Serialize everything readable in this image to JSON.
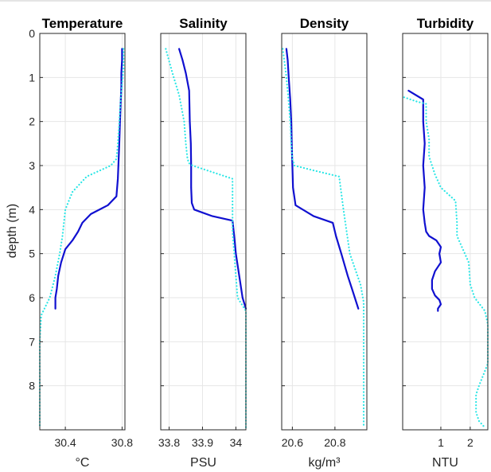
{
  "chart_data": {
    "type": "line",
    "shared_y": {
      "label": "depth (m)",
      "range": [
        0,
        9
      ],
      "reversed": true,
      "ticks": [
        "0",
        "1",
        "2",
        "3",
        "4",
        "5",
        "6",
        "7",
        "8"
      ]
    },
    "grid": true,
    "panels": [
      {
        "title": "Temperature",
        "xlabel": "°C",
        "xlim": [
          30.22,
          30.82
        ],
        "xticks": [
          {
            "value": 30.4,
            "label": "30.4"
          },
          {
            "value": 30.8,
            "label": "30.8"
          }
        ],
        "series": [
          {
            "style": "solid",
            "color": "#1010d0",
            "x": [
              30.8,
              30.8,
              30.795,
              30.795,
              30.79,
              30.785,
              30.78,
              30.775,
              30.77,
              30.76,
              30.7,
              30.58,
              30.52,
              30.49,
              30.45,
              30.4,
              30.37,
              30.35,
              30.34,
              30.33,
              30.33
            ],
            "y": [
              0.35,
              0.6,
              0.9,
              1.2,
              1.6,
              2.0,
              2.5,
              2.9,
              3.3,
              3.7,
              3.9,
              4.1,
              4.3,
              4.5,
              4.7,
              4.9,
              5.2,
              5.5,
              5.8,
              6.0,
              6.25
            ]
          },
          {
            "style": "dotted",
            "color": "#2ce6e6",
            "x": [
              30.81,
              30.81,
              30.79,
              30.78,
              30.77,
              30.76,
              30.72,
              30.55,
              30.45,
              30.4,
              30.38,
              30.36,
              30.33,
              30.29,
              30.23,
              30.22,
              30.22,
              30.22
            ],
            "y": [
              0.35,
              0.8,
              1.5,
              2.0,
              2.5,
              2.85,
              3.0,
              3.25,
              3.6,
              4.0,
              4.6,
              5.0,
              5.5,
              6.0,
              6.4,
              7.0,
              8.0,
              8.95
            ]
          }
        ]
      },
      {
        "title": "Salinity",
        "xlabel": "PSU",
        "xlim": [
          33.775,
          34.03
        ],
        "xticks": [
          {
            "value": 33.8,
            "label": "33.8"
          },
          {
            "value": 33.9,
            "label": "33.9"
          },
          {
            "value": 34.0,
            "label": "34"
          }
        ],
        "series": [
          {
            "style": "solid",
            "color": "#1010d0",
            "x": [
              33.83,
              33.84,
              33.85,
              33.86,
              33.862,
              33.865,
              33.866,
              33.866,
              33.868,
              33.875,
              33.93,
              33.99,
              33.995,
              34.0,
              34.01,
              34.02,
              34.03
            ],
            "y": [
              0.35,
              0.6,
              0.9,
              1.3,
              2.0,
              2.5,
              3.0,
              3.5,
              3.85,
              4.0,
              4.15,
              4.25,
              4.6,
              5.0,
              5.5,
              6.0,
              6.25
            ]
          },
          {
            "style": "dotted",
            "color": "#2ce6e6",
            "x": [
              33.79,
              33.81,
              33.83,
              33.845,
              33.85,
              33.855,
              33.86,
              33.87,
              33.91,
              33.99,
              33.99,
              33.99,
              34.0,
              34.005,
              34.03,
              34.03,
              34.03
            ],
            "y": [
              0.35,
              0.9,
              1.4,
              2.0,
              2.5,
              2.85,
              2.95,
              3.0,
              3.1,
              3.3,
              4.0,
              4.5,
              5.5,
              6.0,
              6.3,
              7.0,
              8.95
            ]
          }
        ]
      },
      {
        "title": "Density",
        "xlabel": "kg/m³",
        "xlim": [
          20.55,
          20.95
        ],
        "xticks": [
          {
            "value": 20.6,
            "label": "20.6"
          },
          {
            "value": 20.8,
            "label": "20.8"
          }
        ],
        "series": [
          {
            "style": "solid",
            "color": "#1010d0",
            "x": [
              20.572,
              20.578,
              20.583,
              20.59,
              20.595,
              20.597,
              20.6,
              20.603,
              20.615,
              20.7,
              20.79,
              20.805,
              20.83,
              20.86,
              20.88,
              20.91
            ],
            "y": [
              0.35,
              0.6,
              1.0,
              1.5,
              2.0,
              2.5,
              3.0,
              3.5,
              3.9,
              4.15,
              4.3,
              4.6,
              5.0,
              5.5,
              5.8,
              6.25
            ]
          },
          {
            "style": "dotted",
            "color": "#2ce6e6",
            "x": [
              20.555,
              20.57,
              20.58,
              20.59,
              20.595,
              20.6,
              20.61,
              20.69,
              20.82,
              20.84,
              20.87,
              20.92,
              20.935,
              20.935,
              20.935
            ],
            "y": [
              0.35,
              0.9,
              1.4,
              2.0,
              2.5,
              2.85,
              3.0,
              3.1,
              3.25,
              4.0,
              5.0,
              5.7,
              6.1,
              7.0,
              8.95
            ]
          }
        ]
      },
      {
        "title": "Turbidity",
        "xlabel": "NTU",
        "xlim": [
          -0.3,
          2.6
        ],
        "xticks": [
          {
            "value": 1,
            "label": "1"
          },
          {
            "value": 2,
            "label": "2"
          }
        ],
        "series": [
          {
            "style": "solid",
            "color": "#1010d0",
            "x": [
              -0.1,
              0.4,
              0.4,
              0.45,
              0.4,
              0.45,
              0.4,
              0.45,
              0.5,
              0.6,
              0.85,
              1.0,
              0.95,
              1.0,
              0.8,
              0.7,
              0.7,
              0.8,
              0.95,
              1.0,
              0.9,
              0.9
            ],
            "y": [
              1.3,
              1.5,
              2.0,
              2.5,
              3.0,
              3.5,
              4.0,
              4.3,
              4.5,
              4.6,
              4.7,
              4.85,
              5.0,
              5.2,
              5.4,
              5.6,
              5.8,
              5.95,
              6.05,
              6.15,
              6.25,
              6.3
            ]
          },
          {
            "style": "dotted",
            "color": "#2ce6e6",
            "x": [
              -0.25,
              0.2,
              0.5,
              0.5,
              0.6,
              0.6,
              0.7,
              0.8,
              1.0,
              1.5,
              1.55,
              1.55,
              1.95,
              2.0,
              2.15,
              2.5,
              2.6,
              2.6,
              2.3,
              2.2,
              2.2,
              2.3,
              2.5
            ],
            "y": [
              1.45,
              1.55,
              1.6,
              2.0,
              2.4,
              2.8,
              3.0,
              3.2,
              3.5,
              3.8,
              4.3,
              4.6,
              5.2,
              5.7,
              6.0,
              6.3,
              6.6,
              7.5,
              8.0,
              8.2,
              8.6,
              8.8,
              8.95
            ]
          }
        ]
      }
    ]
  }
}
